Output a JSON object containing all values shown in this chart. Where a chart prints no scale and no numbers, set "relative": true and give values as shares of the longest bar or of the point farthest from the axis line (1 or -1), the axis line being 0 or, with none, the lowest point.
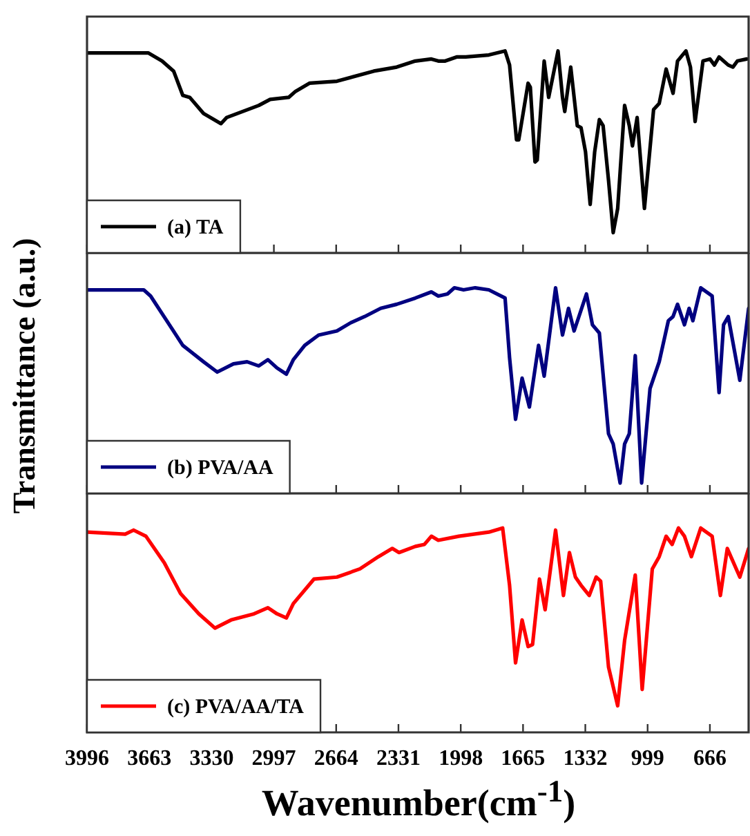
{
  "chart_data": [
    {
      "type": "line",
      "relative": true,
      "legend": "bottom left",
      "tick_labels": false,
      "xlim": [
        3996,
        459
      ],
      "xticks": [
        3996,
        3663,
        3330,
        2997,
        2664,
        2331,
        1998,
        1665,
        1332,
        999,
        666
      ],
      "x": [
        3996,
        3669,
        3595,
        3533,
        3484,
        3447,
        3373,
        3280,
        3250,
        3078,
        3017,
        2918,
        2881,
        2807,
        2660,
        2463,
        2340,
        2241,
        2155,
        2118,
        2081,
        2020,
        1971,
        1848,
        1761,
        1737,
        1700,
        1688,
        1638,
        1626,
        1601,
        1589,
        1552,
        1528,
        1478,
        1454,
        1442,
        1410,
        1375,
        1355,
        1331,
        1306,
        1282,
        1257,
        1237,
        1208,
        1183,
        1159,
        1122,
        1097,
        1080,
        1055,
        1016,
        967,
        937,
        900,
        863,
        839,
        794,
        770,
        745,
        703,
        666,
        642,
        617,
        568,
        543,
        519,
        469
      ],
      "series": [
        {
          "name": "(a) TA",
          "color": "#000000",
          "values": [
            0.99,
            0.99,
            0.95,
            0.9,
            0.78,
            0.77,
            0.69,
            0.64,
            0.67,
            0.73,
            0.76,
            0.77,
            0.8,
            0.84,
            0.85,
            0.9,
            0.92,
            0.95,
            0.96,
            0.95,
            0.95,
            0.97,
            0.97,
            0.98,
            1,
            0.93,
            0.56,
            0.56,
            0.84,
            0.82,
            0.45,
            0.46,
            0.95,
            0.77,
            1,
            0.77,
            0.7,
            0.92,
            0.63,
            0.62,
            0.5,
            0.24,
            0.5,
            0.66,
            0.63,
            0.36,
            0.1,
            0.22,
            0.73,
            0.63,
            0.53,
            0.67,
            0.22,
            0.71,
            0.74,
            0.91,
            0.79,
            0.95,
            1,
            0.92,
            0.65,
            0.95,
            0.96,
            0.93,
            0.97,
            0.93,
            0.92,
            0.95,
            0.96
          ]
        }
      ]
    },
    {
      "type": "line",
      "relative": true,
      "legend": "bottom left",
      "tick_labels": false,
      "ylabel": "Transmittance (a.u.)",
      "xlim": [
        3996,
        459
      ],
      "xticks": [
        3996,
        3663,
        3330,
        2997,
        2664,
        2331,
        1998,
        1665,
        1332,
        999,
        666
      ],
      "x": [
        3996,
        3693,
        3656,
        3570,
        3484,
        3373,
        3300,
        3213,
        3140,
        3078,
        3029,
        2980,
        2930,
        2893,
        2832,
        2758,
        2660,
        2586,
        2512,
        2426,
        2340,
        2241,
        2155,
        2118,
        2069,
        2032,
        1983,
        1921,
        1848,
        1761,
        1737,
        1705,
        1670,
        1631,
        1582,
        1552,
        1491,
        1454,
        1422,
        1392,
        1326,
        1294,
        1257,
        1208,
        1183,
        1146,
        1122,
        1097,
        1065,
        1031,
        986,
        937,
        888,
        863,
        839,
        802,
        777,
        757,
        715,
        654,
        617,
        593,
        568,
        506,
        459
      ],
      "series": [
        {
          "name": "(b) PVA/AA",
          "color": "#000080",
          "values": [
            0.99,
            0.99,
            0.96,
            0.84,
            0.72,
            0.64,
            0.59,
            0.63,
            0.64,
            0.62,
            0.65,
            0.61,
            0.58,
            0.65,
            0.72,
            0.77,
            0.79,
            0.83,
            0.86,
            0.9,
            0.92,
            0.95,
            0.98,
            0.96,
            0.97,
            1,
            0.99,
            1,
            0.99,
            0.95,
            0.66,
            0.36,
            0.56,
            0.42,
            0.72,
            0.57,
            1,
            0.77,
            0.9,
            0.79,
            0.97,
            0.82,
            0.78,
            0.29,
            0.24,
            0.05,
            0.24,
            0.29,
            0.67,
            0.05,
            0.51,
            0.64,
            0.84,
            0.86,
            0.92,
            0.82,
            0.9,
            0.84,
            1,
            0.96,
            0.49,
            0.82,
            0.86,
            0.55,
            0.9
          ]
        }
      ]
    },
    {
      "type": "line",
      "relative": true,
      "legend": "bottom left",
      "tick_labels": "x",
      "xlabel": "Wavenumber(cm$^{-1}$)",
      "xlim": [
        3996,
        459
      ],
      "xticks": [
        3996,
        3663,
        3330,
        2997,
        2664,
        2331,
        1998,
        1665,
        1332,
        999,
        666
      ],
      "x": [
        3996,
        3792,
        3747,
        3681,
        3583,
        3496,
        3398,
        3312,
        3226,
        3103,
        3029,
        2980,
        2930,
        2893,
        2783,
        2660,
        2537,
        2438,
        2364,
        2328,
        2241,
        2192,
        2155,
        2118,
        2008,
        1848,
        1774,
        1737,
        1705,
        1670,
        1638,
        1614,
        1577,
        1547,
        1491,
        1449,
        1417,
        1385,
        1355,
        1311,
        1274,
        1250,
        1208,
        1159,
        1122,
        1065,
        1028,
        974,
        937,
        900,
        868,
        834,
        802,
        765,
        715,
        654,
        610,
        573,
        506,
        459
      ],
      "series": [
        {
          "name": "(c) PVA/AA/TA",
          "color": "#ff0000",
          "values": [
            0.98,
            0.97,
            0.99,
            0.96,
            0.83,
            0.68,
            0.58,
            0.51,
            0.55,
            0.58,
            0.61,
            0.58,
            0.56,
            0.63,
            0.75,
            0.76,
            0.8,
            0.86,
            0.9,
            0.88,
            0.91,
            0.92,
            0.96,
            0.94,
            0.96,
            0.98,
            1,
            0.72,
            0.34,
            0.55,
            0.42,
            0.43,
            0.75,
            0.6,
            0.99,
            0.67,
            0.88,
            0.76,
            0.72,
            0.67,
            0.76,
            0.74,
            0.32,
            0.13,
            0.45,
            0.77,
            0.21,
            0.8,
            0.86,
            0.96,
            0.92,
            1,
            0.96,
            0.86,
            1,
            0.96,
            0.67,
            0.9,
            0.76,
            0.9
          ]
        }
      ]
    }
  ]
}
